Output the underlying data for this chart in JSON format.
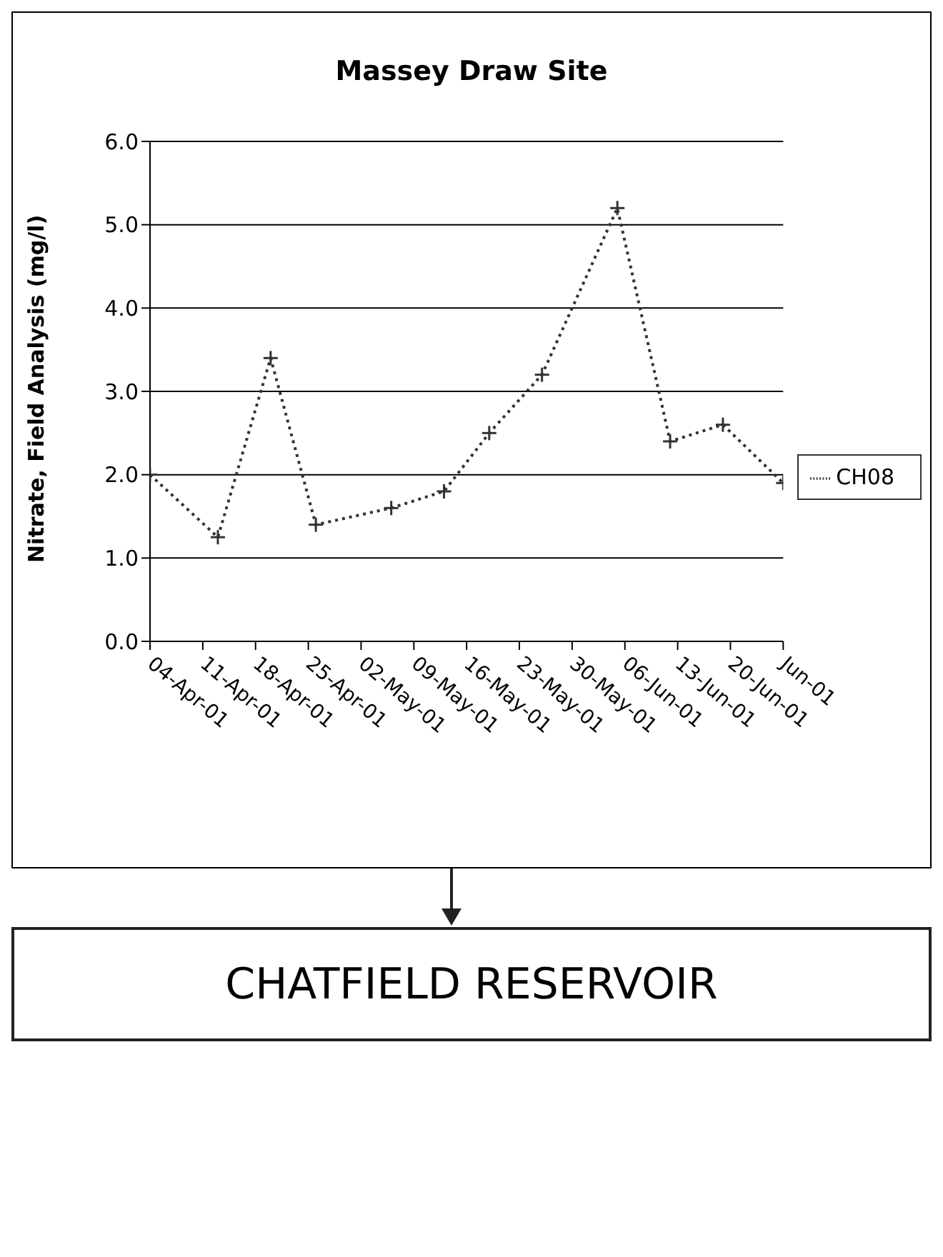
{
  "chart_data": {
    "type": "line",
    "title": "Massey Draw Site",
    "ylabel": "Nitrate, Field Analysis (mg/l)",
    "x": [
      "--04-04",
      "--04-13",
      "--04-20",
      "--04-26",
      "--05-06",
      "--05-13",
      "--05-19",
      "--05-26",
      "--06-05",
      "--06-12",
      "--06-19",
      "--06-27"
    ],
    "series": [
      {
        "name": "CH08",
        "color": "#333333",
        "values": [
          2.0,
          1.25,
          3.4,
          1.4,
          1.6,
          1.8,
          2.5,
          3.2,
          5.2,
          2.4,
          2.6,
          1.9
        ]
      }
    ],
    "xlim": [
      "--04-04",
      "--06-27"
    ],
    "xticks": [
      {
        "value": "--04-04",
        "label": "04-Apr-01"
      },
      {
        "value": "--04-11",
        "label": "11-Apr-01"
      },
      {
        "value": "--04-18",
        "label": "18-Apr-01"
      },
      {
        "value": "--04-25",
        "label": "25-Apr-01"
      },
      {
        "value": "--05-02",
        "label": "02-May-01"
      },
      {
        "value": "--05-09",
        "label": "09-May-01"
      },
      {
        "value": "--05-16",
        "label": "16-May-01"
      },
      {
        "value": "--05-23",
        "label": "23-May-01"
      },
      {
        "value": "--05-30",
        "label": "30-May-01"
      },
      {
        "value": "--06-06",
        "label": "06-Jun-01"
      },
      {
        "value": "--06-13",
        "label": "13-Jun-01"
      },
      {
        "value": "--06-20",
        "label": "20-Jun-01"
      },
      {
        "value": "--06-27",
        "label": "Jun-01"
      }
    ],
    "ylim": [
      0,
      6
    ],
    "yticks": [
      {
        "value": 0,
        "label": "0.0"
      },
      {
        "value": 1,
        "label": "1.0"
      },
      {
        "value": 2,
        "label": "2.0"
      },
      {
        "value": 3,
        "label": "3.0"
      },
      {
        "value": 4,
        "label": "4.0"
      },
      {
        "value": 5,
        "label": "5.0"
      },
      {
        "value": 6,
        "label": "6.0"
      }
    ],
    "grid": "y",
    "legend": "right",
    "marker": "cross",
    "line_style": "dotted",
    "annotations": [
      "CHATFIELD RESERVOIR"
    ]
  }
}
